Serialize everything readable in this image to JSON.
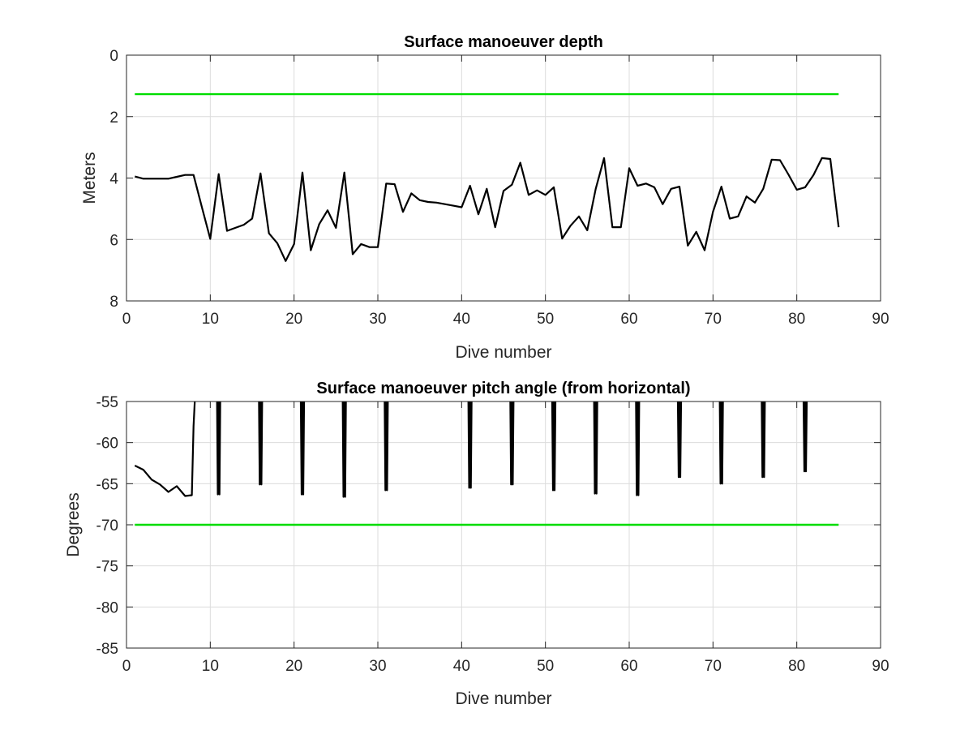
{
  "chart_data": [
    {
      "type": "line",
      "title": "Surface manoeuver depth",
      "xlabel": "Dive number",
      "ylabel": "Meters",
      "xlim": [
        0,
        90
      ],
      "ylim": [
        0,
        8
      ],
      "y_reversed": true,
      "grid": true,
      "xticks": [
        "0",
        "10",
        "20",
        "30",
        "40",
        "50",
        "60",
        "70",
        "80",
        "90"
      ],
      "yticks": [
        "0",
        "2",
        "4",
        "6",
        "8"
      ],
      "series": [
        {
          "color": "#000000",
          "x": [
            1,
            2,
            3,
            4,
            5,
            6,
            7,
            8,
            9,
            10,
            11,
            12,
            13,
            14,
            15,
            16,
            17,
            18,
            19,
            20,
            21,
            22,
            23,
            24,
            25,
            26,
            27,
            28,
            29,
            30,
            31,
            32,
            33,
            34,
            35,
            36,
            37,
            38,
            39,
            40,
            41,
            42,
            43,
            44,
            45,
            46,
            47,
            48,
            49,
            50,
            51,
            52,
            53,
            54,
            55,
            56,
            57,
            58,
            59,
            60,
            61,
            62,
            63,
            64,
            65,
            66,
            67,
            68,
            69,
            70,
            71,
            72,
            73,
            74,
            75,
            76,
            77,
            78,
            79,
            80,
            81,
            82,
            83,
            84,
            85
          ],
          "y": [
            3.95,
            4.02,
            4.02,
            4.02,
            4.02,
            3.96,
            3.9,
            3.9,
            4.95,
            5.98,
            3.87,
            5.72,
            5.62,
            5.52,
            5.32,
            3.85,
            5.8,
            6.12,
            6.7,
            6.15,
            3.82,
            6.35,
            5.5,
            5.05,
            5.62,
            3.82,
            6.48,
            6.15,
            6.25,
            6.25,
            4.18,
            4.2,
            5.1,
            4.5,
            4.72,
            4.78,
            4.8,
            4.85,
            4.9,
            4.95,
            4.25,
            5.18,
            4.35,
            5.6,
            4.42,
            4.22,
            3.5,
            4.55,
            4.4,
            4.55,
            4.3,
            5.97,
            5.55,
            5.25,
            5.7,
            4.35,
            3.35,
            5.6,
            5.6,
            3.68,
            4.25,
            4.18,
            4.3,
            4.85,
            4.35,
            4.28,
            6.2,
            5.75,
            6.35,
            5.1,
            4.28,
            5.32,
            5.25,
            4.6,
            4.8,
            4.35,
            3.4,
            3.42,
            3.88,
            4.38,
            4.3,
            3.9,
            3.35,
            3.38,
            5.6
          ]
        },
        {
          "color": "#00dd00",
          "x": [
            1,
            85
          ],
          "y": [
            1.27,
            1.27
          ]
        }
      ]
    },
    {
      "type": "line",
      "title": "Surface manoeuver pitch angle (from horizontal)",
      "xlabel": "Dive number",
      "ylabel": "Degrees",
      "xlim": [
        0,
        90
      ],
      "ylim": [
        -85,
        -55
      ],
      "grid": true,
      "xticks": [
        "0",
        "10",
        "20",
        "30",
        "40",
        "50",
        "60",
        "70",
        "80",
        "90"
      ],
      "yticks": [
        "-55",
        "-60",
        "-65",
        "-70",
        "-75",
        "-80",
        "-85"
      ],
      "series": [
        {
          "color": "#000000",
          "x": [
            1,
            2,
            3,
            4,
            5,
            6,
            7,
            7.8,
            8,
            8.2,
            9.5,
            10.8,
            10.9,
            11,
            11.1,
            11.2,
            12.5,
            15.8,
            15.9,
            16,
            16.1,
            16.2,
            17.5,
            20.8,
            20.9,
            21,
            21.1,
            21.2,
            22.5,
            25.8,
            25.9,
            26,
            26.1,
            26.2,
            27.5,
            30.8,
            30.9,
            31,
            31.1,
            31.2,
            32.5,
            40.8,
            40.9,
            41,
            41.1,
            41.2,
            42.5,
            45.8,
            45.9,
            46,
            46.1,
            46.2,
            47.5,
            50.8,
            50.9,
            51,
            51.1,
            51.2,
            52.5,
            55.8,
            55.9,
            56,
            56.1,
            56.2,
            57.5,
            60.8,
            60.9,
            61,
            61.1,
            61.2,
            62.5,
            65.8,
            65.9,
            66,
            66.1,
            66.2,
            67.5,
            70.8,
            70.9,
            71,
            71.1,
            71.2,
            72.5,
            75.8,
            75.9,
            76,
            76.1,
            76.2,
            77.5,
            80.8,
            80.9,
            81,
            81.1,
            81.2
          ],
          "y": [
            -62.8,
            -63.3,
            -64.5,
            -65.1,
            -66.0,
            -65.3,
            -66.5,
            -66.4,
            -58.0,
            -54.0,
            -54.0,
            -54.0,
            -66.3,
            -54.0,
            -66.3,
            -54.0,
            -54.0,
            -54.0,
            -65.1,
            -54.0,
            -65.1,
            -54.0,
            -54.0,
            -54.0,
            -66.3,
            -54.0,
            -66.3,
            -54.0,
            -54.0,
            -54.0,
            -66.6,
            -54.0,
            -66.6,
            -54.0,
            -54.0,
            -54.0,
            -65.8,
            -54.0,
            -65.8,
            -54.0,
            -54.0,
            -54.0,
            -65.5,
            -54.0,
            -65.5,
            -54.0,
            -54.0,
            -54.0,
            -65.1,
            -54.0,
            -65.1,
            -54.0,
            -54.0,
            -54.0,
            -65.8,
            -54.0,
            -65.8,
            -54.0,
            -54.0,
            -54.0,
            -66.2,
            -54.0,
            -66.2,
            -54.0,
            -54.0,
            -54.0,
            -66.4,
            -54.0,
            -66.4,
            -54.0,
            -54.0,
            -54.0,
            -64.2,
            -54.0,
            -64.2,
            -54.0,
            -54.0,
            -54.0,
            -65.0,
            -54.0,
            -65.0,
            -54.0,
            -54.0,
            -54.0,
            -64.2,
            -54.0,
            -64.2,
            -54.0,
            -54.0,
            -54.0,
            -63.5,
            -54.0,
            -63.5,
            -54.0
          ]
        },
        {
          "color": "#00dd00",
          "x": [
            1,
            85
          ],
          "y": [
            -70,
            -70
          ]
        }
      ]
    }
  ]
}
